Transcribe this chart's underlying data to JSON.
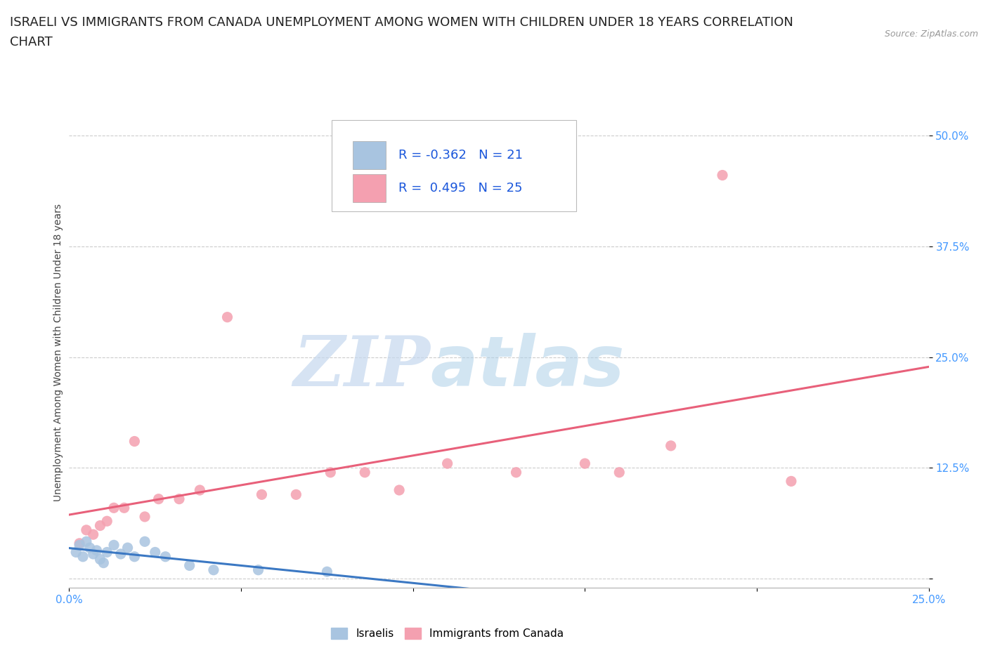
{
  "title_line1": "ISRAELI VS IMMIGRANTS FROM CANADA UNEMPLOYMENT AMONG WOMEN WITH CHILDREN UNDER 18 YEARS CORRELATION",
  "title_line2": "CHART",
  "source": "Source: ZipAtlas.com",
  "ylabel": "Unemployment Among Women with Children Under 18 years",
  "xlim": [
    0.0,
    0.25
  ],
  "ylim": [
    -0.01,
    0.52
  ],
  "ytick_positions": [
    0.0,
    0.125,
    0.25,
    0.375,
    0.5
  ],
  "ytick_labels": [
    "",
    "12.5%",
    "25.0%",
    "37.5%",
    "50.0%"
  ],
  "israeli_x": [
    0.002,
    0.003,
    0.004,
    0.005,
    0.006,
    0.007,
    0.008,
    0.009,
    0.01,
    0.011,
    0.013,
    0.015,
    0.017,
    0.019,
    0.022,
    0.025,
    0.028,
    0.035,
    0.042,
    0.055,
    0.075
  ],
  "israeli_y": [
    0.03,
    0.038,
    0.025,
    0.042,
    0.035,
    0.028,
    0.032,
    0.022,
    0.018,
    0.03,
    0.038,
    0.028,
    0.035,
    0.025,
    0.042,
    0.03,
    0.025,
    0.015,
    0.01,
    0.01,
    0.008
  ],
  "canada_x": [
    0.003,
    0.005,
    0.007,
    0.009,
    0.011,
    0.013,
    0.016,
    0.019,
    0.022,
    0.026,
    0.032,
    0.038,
    0.046,
    0.056,
    0.066,
    0.076,
    0.086,
    0.096,
    0.11,
    0.13,
    0.15,
    0.16,
    0.175,
    0.19,
    0.21
  ],
  "canada_y": [
    0.04,
    0.055,
    0.05,
    0.06,
    0.065,
    0.08,
    0.08,
    0.155,
    0.07,
    0.09,
    0.09,
    0.1,
    0.295,
    0.095,
    0.095,
    0.12,
    0.12,
    0.1,
    0.13,
    0.12,
    0.13,
    0.12,
    0.15,
    0.455,
    0.11
  ],
  "israeli_color": "#a8c4e0",
  "canada_color": "#f4a0b0",
  "israeli_line_color": "#3b78c3",
  "canada_line_color": "#e8607a",
  "R_israeli": -0.362,
  "N_israeli": 21,
  "R_canada": 0.495,
  "N_canada": 25,
  "watermark_zip": "ZIP",
  "watermark_atlas": "atlas",
  "background_color": "#ffffff",
  "grid_color": "#cccccc",
  "title_fontsize": 13,
  "axis_label_fontsize": 10,
  "tick_fontsize": 11,
  "tick_color": "#4499ff"
}
